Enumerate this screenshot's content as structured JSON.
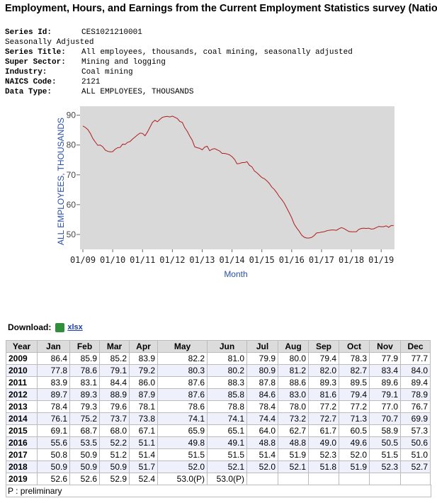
{
  "header": {
    "title": "Employment, Hours, and Earnings from the Current Employment Statistics survey (National)"
  },
  "series_info": {
    "rows": [
      [
        "Series Id:",
        "CES1021210001"
      ],
      [
        "Seasonally Adjusted"
      ],
      [
        "Series Title:",
        "All employees, thousands, coal mining, seasonally adjusted"
      ],
      [
        "Super Sector:",
        "Mining and logging"
      ],
      [
        "Industry:",
        "Coal mining"
      ],
      [
        "NAICS Code:",
        "2121"
      ],
      [
        "Data Type:",
        "ALL EMPLOYEES, THOUSANDS"
      ]
    ]
  },
  "chart_data": {
    "type": "line",
    "ylabel": "ALL EMPLOYEES, THOUSANDS",
    "xlabel": "Month",
    "color": "#b01c1c",
    "categories": [
      "01/09",
      null,
      null,
      null,
      null,
      null,
      null,
      null,
      null,
      null,
      null,
      null,
      "01/10",
      null,
      null,
      null,
      null,
      null,
      null,
      null,
      null,
      null,
      null,
      null,
      "01/11",
      null,
      null,
      null,
      null,
      null,
      null,
      null,
      null,
      null,
      null,
      null,
      "01/12",
      null,
      null,
      null,
      null,
      null,
      null,
      null,
      null,
      null,
      null,
      null,
      "01/13",
      null,
      null,
      null,
      null,
      null,
      null,
      null,
      null,
      null,
      null,
      null,
      "01/14",
      null,
      null,
      null,
      null,
      null,
      null,
      null,
      null,
      null,
      null,
      null,
      "01/15",
      null,
      null,
      null,
      null,
      null,
      null,
      null,
      null,
      null,
      null,
      null,
      "01/16",
      null,
      null,
      null,
      null,
      null,
      null,
      null,
      null,
      null,
      null,
      null,
      "01/17",
      null,
      null,
      null,
      null,
      null,
      null,
      null,
      null,
      null,
      null,
      null,
      "01/18",
      null,
      null,
      null,
      null,
      null,
      null,
      null,
      null,
      null,
      null,
      null,
      "01/19",
      null,
      null,
      null,
      null,
      null
    ],
    "values": [
      86.4,
      85.9,
      85.2,
      83.9,
      82.2,
      81.0,
      79.9,
      80.0,
      79.4,
      78.3,
      77.9,
      77.7,
      77.8,
      78.6,
      79.1,
      79.2,
      80.3,
      80.2,
      80.9,
      81.2,
      82.0,
      82.7,
      83.4,
      84.0,
      83.9,
      83.1,
      84.4,
      86.0,
      87.6,
      88.3,
      87.8,
      88.6,
      89.3,
      89.5,
      89.6,
      89.4,
      89.7,
      89.3,
      88.9,
      87.9,
      87.6,
      85.8,
      84.6,
      83.0,
      81.6,
      79.4,
      79.1,
      78.9,
      78.4,
      79.3,
      79.6,
      78.1,
      78.6,
      78.8,
      78.4,
      78.0,
      77.2,
      77.2,
      77.0,
      76.7,
      76.1,
      75.2,
      73.7,
      73.8,
      74.1,
      74.1,
      74.4,
      73.2,
      72.7,
      71.3,
      70.7,
      69.9,
      69.1,
      68.7,
      68.0,
      67.1,
      65.9,
      65.1,
      64.0,
      62.7,
      61.7,
      60.5,
      58.9,
      57.3,
      55.6,
      53.5,
      52.2,
      51.1,
      49.8,
      49.1,
      48.8,
      48.8,
      49.0,
      49.6,
      50.5,
      50.6,
      50.8,
      50.9,
      51.2,
      51.4,
      51.5,
      51.5,
      51.4,
      51.9,
      52.3,
      52.0,
      51.5,
      51.0,
      50.9,
      50.9,
      50.9,
      51.7,
      52.0,
      52.1,
      52.0,
      52.1,
      51.8,
      51.9,
      52.3,
      52.7,
      52.6,
      52.6,
      52.9,
      52.4,
      53.0,
      53.0
    ],
    "ylim": [
      45,
      93
    ],
    "yticks": [
      50,
      60,
      70,
      80,
      90
    ],
    "grid": false
  },
  "download": {
    "label": "Download:",
    "link": "xlsx"
  },
  "table": {
    "columns": [
      "Year",
      "Jan",
      "Feb",
      "Mar",
      "Apr",
      "May",
      "Jun",
      "Jul",
      "Aug",
      "Sep",
      "Oct",
      "Nov",
      "Dec"
    ],
    "rows": [
      [
        "2009",
        "86.4",
        "85.9",
        "85.2",
        "83.9",
        "82.2",
        "81.0",
        "79.9",
        "80.0",
        "79.4",
        "78.3",
        "77.9",
        "77.7"
      ],
      [
        "2010",
        "77.8",
        "78.6",
        "79.1",
        "79.2",
        "80.3",
        "80.2",
        "80.9",
        "81.2",
        "82.0",
        "82.7",
        "83.4",
        "84.0"
      ],
      [
        "2011",
        "83.9",
        "83.1",
        "84.4",
        "86.0",
        "87.6",
        "88.3",
        "87.8",
        "88.6",
        "89.3",
        "89.5",
        "89.6",
        "89.4"
      ],
      [
        "2012",
        "89.7",
        "89.3",
        "88.9",
        "87.9",
        "87.6",
        "85.8",
        "84.6",
        "83.0",
        "81.6",
        "79.4",
        "79.1",
        "78.9"
      ],
      [
        "2013",
        "78.4",
        "79.3",
        "79.6",
        "78.1",
        "78.6",
        "78.8",
        "78.4",
        "78.0",
        "77.2",
        "77.2",
        "77.0",
        "76.7"
      ],
      [
        "2014",
        "76.1",
        "75.2",
        "73.7",
        "73.8",
        "74.1",
        "74.1",
        "74.4",
        "73.2",
        "72.7",
        "71.3",
        "70.7",
        "69.9"
      ],
      [
        "2015",
        "69.1",
        "68.7",
        "68.0",
        "67.1",
        "65.9",
        "65.1",
        "64.0",
        "62.7",
        "61.7",
        "60.5",
        "58.9",
        "57.3"
      ],
      [
        "2016",
        "55.6",
        "53.5",
        "52.2",
        "51.1",
        "49.8",
        "49.1",
        "48.8",
        "48.8",
        "49.0",
        "49.6",
        "50.5",
        "50.6"
      ],
      [
        "2017",
        "50.8",
        "50.9",
        "51.2",
        "51.4",
        "51.5",
        "51.5",
        "51.4",
        "51.9",
        "52.3",
        "52.0",
        "51.5",
        "51.0"
      ],
      [
        "2018",
        "50.9",
        "50.9",
        "50.9",
        "51.7",
        "52.0",
        "52.1",
        "52.0",
        "52.1",
        "51.8",
        "51.9",
        "52.3",
        "52.7"
      ],
      [
        "2019",
        "52.6",
        "52.6",
        "52.9",
        "52.4",
        "53.0(P)",
        "53.0(P)"
      ]
    ]
  },
  "footnote": "P : preliminary"
}
